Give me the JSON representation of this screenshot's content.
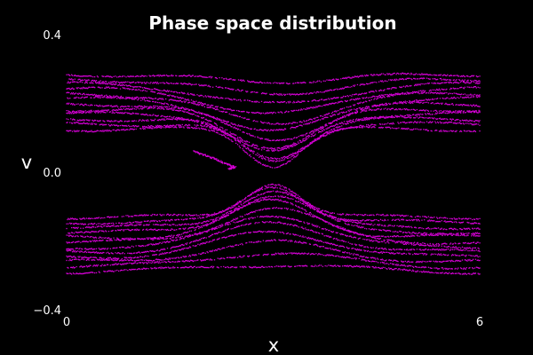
{
  "chart_data": {
    "type": "scatter",
    "title": "Phase space distribution",
    "xlabel": "x",
    "ylabel": "v",
    "xlim": [
      0,
      6
    ],
    "ylim": [
      -0.4,
      0.4
    ],
    "x_ticks": [
      {
        "value": 0,
        "label": "0"
      },
      {
        "value": 6,
        "label": "6"
      }
    ],
    "y_ticks": [
      {
        "value": 0.4,
        "label": "0.4"
      },
      {
        "value": 0.0,
        "label": "0.0"
      },
      {
        "value": -0.4,
        "label": "−0.4"
      }
    ],
    "grid": false,
    "legend": "none",
    "background_color": "#000000",
    "marker_color": "#d400d4",
    "series": [
      {
        "bands": "upper",
        "x_range": [
          0,
          6
        ],
        "velocity_edge": 0.285,
        "dip_center_x": 3.0,
        "dip_min_v": 0.02,
        "stream_count": 12
      },
      {
        "bands": "lower",
        "x_range": [
          0,
          6
        ],
        "velocity_edge": -0.29,
        "bump_center_x": 3.0,
        "bump_max_v": -0.03,
        "stream_count": 12
      },
      {
        "bands": "trapped-filament",
        "points": [
          [
            1.85,
            0.06
          ],
          [
            2.0,
            0.05
          ],
          [
            2.15,
            0.04
          ],
          [
            2.3,
            0.025
          ],
          [
            2.45,
            0.015
          ],
          [
            2.35,
            0.01
          ]
        ]
      }
    ]
  }
}
